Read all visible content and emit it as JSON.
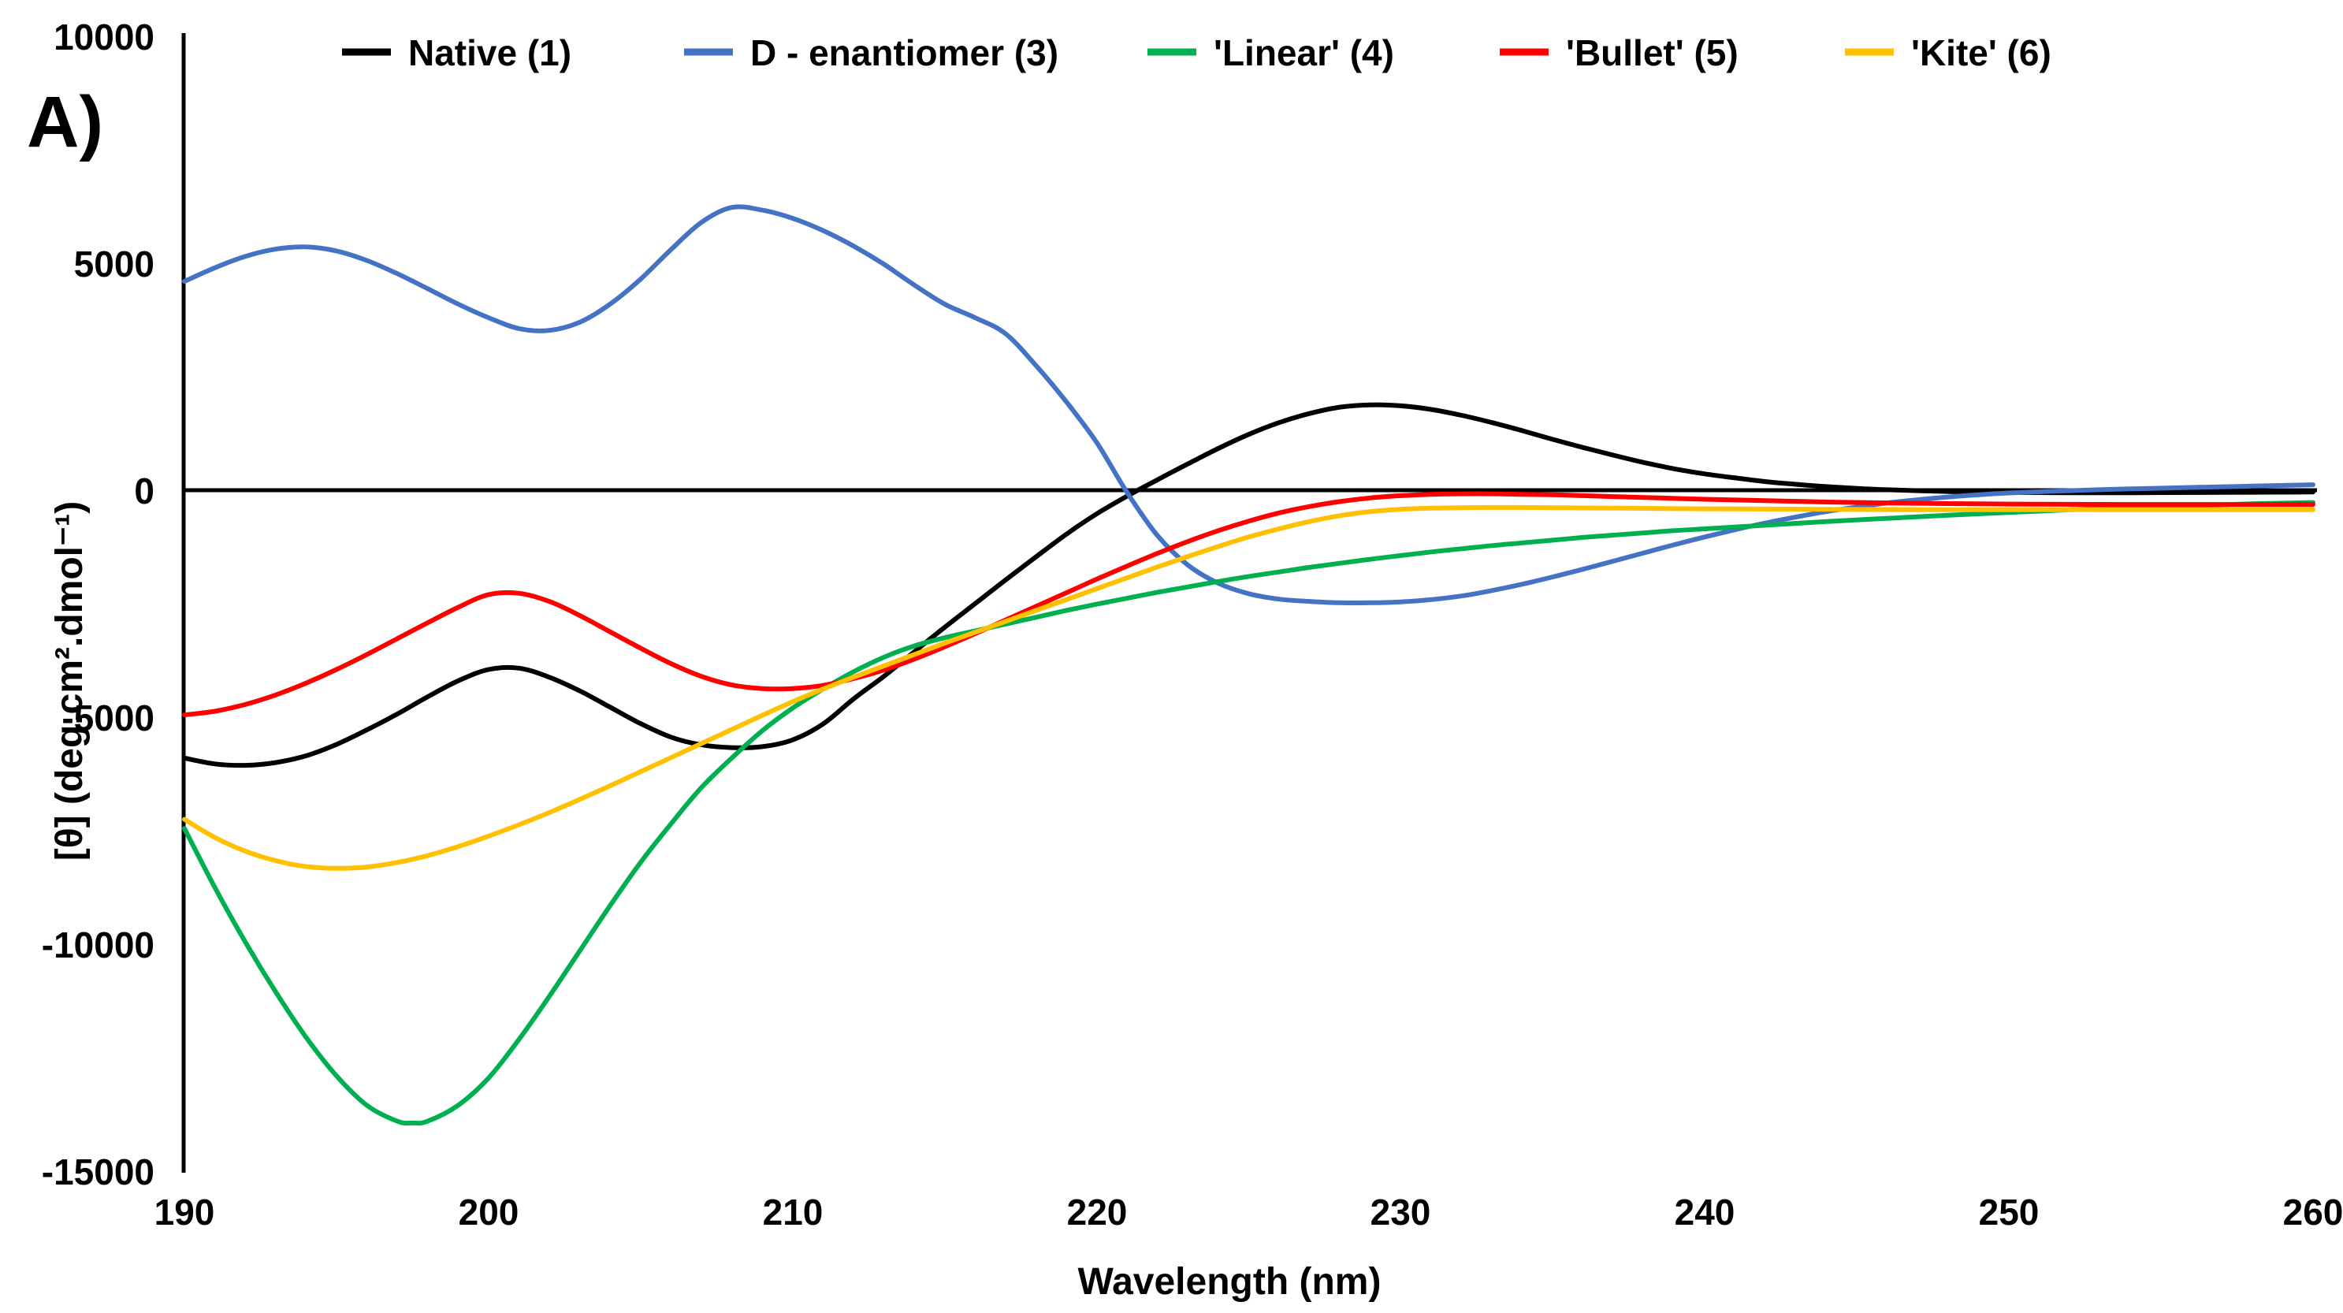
{
  "panel_label": "A)",
  "chart_data": {
    "type": "line",
    "title": "",
    "xlabel": "Wavelength (nm)",
    "ylabel": "[θ] (deg.cm².dmol⁻¹)",
    "xlim": [
      190,
      260
    ],
    "ylim": [
      -15000,
      10000
    ],
    "x_ticks": [
      190,
      200,
      210,
      220,
      230,
      240,
      250,
      260
    ],
    "y_ticks": [
      10000,
      5000,
      0,
      -5000,
      -10000,
      -15000
    ],
    "grid": false,
    "legend_position": "top",
    "axis_color": "#000000",
    "series": [
      {
        "name": "Native (1)",
        "color": "#000000",
        "points": [
          [
            190,
            -5900
          ],
          [
            191,
            -6030
          ],
          [
            192,
            -6060
          ],
          [
            193,
            -6000
          ],
          [
            194,
            -5850
          ],
          [
            195,
            -5600
          ],
          [
            196,
            -5280
          ],
          [
            197,
            -4930
          ],
          [
            198,
            -4550
          ],
          [
            199,
            -4200
          ],
          [
            200,
            -3950
          ],
          [
            201,
            -3920
          ],
          [
            202,
            -4120
          ],
          [
            203,
            -4420
          ],
          [
            204,
            -4780
          ],
          [
            205,
            -5140
          ],
          [
            206,
            -5440
          ],
          [
            207,
            -5610
          ],
          [
            208,
            -5670
          ],
          [
            209,
            -5650
          ],
          [
            210,
            -5500
          ],
          [
            211,
            -5150
          ],
          [
            212,
            -4600
          ],
          [
            213,
            -4100
          ],
          [
            214,
            -3560
          ],
          [
            215,
            -3020
          ],
          [
            216,
            -2500
          ],
          [
            217,
            -1980
          ],
          [
            218,
            -1470
          ],
          [
            219,
            -970
          ],
          [
            220,
            -520
          ],
          [
            221,
            -130
          ],
          [
            222,
            230
          ],
          [
            223,
            580
          ],
          [
            224,
            920
          ],
          [
            225,
            1230
          ],
          [
            226,
            1490
          ],
          [
            227,
            1690
          ],
          [
            228,
            1830
          ],
          [
            229,
            1880
          ],
          [
            230,
            1860
          ],
          [
            231,
            1780
          ],
          [
            232,
            1650
          ],
          [
            233,
            1490
          ],
          [
            234,
            1310
          ],
          [
            235,
            1120
          ],
          [
            236,
            940
          ],
          [
            237,
            770
          ],
          [
            238,
            610
          ],
          [
            239,
            470
          ],
          [
            240,
            360
          ],
          [
            241,
            270
          ],
          [
            242,
            190
          ],
          [
            243,
            130
          ],
          [
            244,
            80
          ],
          [
            245,
            40
          ],
          [
            246,
            10
          ],
          [
            247,
            -10
          ],
          [
            248,
            -30
          ],
          [
            249,
            -40
          ],
          [
            250,
            -50
          ],
          [
            252,
            -55
          ],
          [
            254,
            -55
          ],
          [
            256,
            -50
          ],
          [
            258,
            -45
          ],
          [
            260,
            -40
          ]
        ]
      },
      {
        "name": "D - enantiomer (3)",
        "color": "#4472C4",
        "points": [
          [
            190,
            4600
          ],
          [
            191,
            4900
          ],
          [
            192,
            5150
          ],
          [
            193,
            5310
          ],
          [
            194,
            5360
          ],
          [
            195,
            5270
          ],
          [
            196,
            5060
          ],
          [
            197,
            4770
          ],
          [
            198,
            4440
          ],
          [
            199,
            4100
          ],
          [
            200,
            3800
          ],
          [
            201,
            3560
          ],
          [
            202,
            3520
          ],
          [
            203,
            3700
          ],
          [
            204,
            4100
          ],
          [
            205,
            4650
          ],
          [
            206,
            5300
          ],
          [
            207,
            5900
          ],
          [
            208,
            6230
          ],
          [
            209,
            6170
          ],
          [
            210,
            5990
          ],
          [
            211,
            5720
          ],
          [
            212,
            5380
          ],
          [
            213,
            4980
          ],
          [
            214,
            4520
          ],
          [
            215,
            4100
          ],
          [
            216,
            3800
          ],
          [
            217,
            3450
          ],
          [
            218,
            2750
          ],
          [
            219,
            1950
          ],
          [
            220,
            1050
          ],
          [
            221,
            -50
          ],
          [
            222,
            -1000
          ],
          [
            223,
            -1650
          ],
          [
            224,
            -2050
          ],
          [
            225,
            -2280
          ],
          [
            226,
            -2400
          ],
          [
            227,
            -2450
          ],
          [
            228,
            -2480
          ],
          [
            229,
            -2480
          ],
          [
            230,
            -2460
          ],
          [
            231,
            -2410
          ],
          [
            232,
            -2330
          ],
          [
            233,
            -2210
          ],
          [
            234,
            -2070
          ],
          [
            235,
            -1910
          ],
          [
            236,
            -1740
          ],
          [
            237,
            -1560
          ],
          [
            238,
            -1380
          ],
          [
            239,
            -1200
          ],
          [
            240,
            -1030
          ],
          [
            241,
            -870
          ],
          [
            242,
            -720
          ],
          [
            243,
            -590
          ],
          [
            244,
            -470
          ],
          [
            245,
            -370
          ],
          [
            246,
            -280
          ],
          [
            247,
            -210
          ],
          [
            248,
            -150
          ],
          [
            249,
            -100
          ],
          [
            250,
            -60
          ],
          [
            252,
            -10
          ],
          [
            254,
            30
          ],
          [
            256,
            60
          ],
          [
            258,
            90
          ],
          [
            260,
            120
          ]
        ]
      },
      {
        "name": "'Linear' (4)",
        "color": "#00B050",
        "points": [
          [
            190,
            -7450
          ],
          [
            191,
            -8750
          ],
          [
            192,
            -9950
          ],
          [
            193,
            -11050
          ],
          [
            194,
            -12050
          ],
          [
            195,
            -12900
          ],
          [
            196,
            -13550
          ],
          [
            197,
            -13900
          ],
          [
            197.5,
            -13940
          ],
          [
            198,
            -13900
          ],
          [
            199,
            -13550
          ],
          [
            200,
            -12950
          ],
          [
            201,
            -12100
          ],
          [
            202,
            -11150
          ],
          [
            203,
            -10150
          ],
          [
            204,
            -9150
          ],
          [
            205,
            -8200
          ],
          [
            206,
            -7350
          ],
          [
            207,
            -6550
          ],
          [
            208,
            -5900
          ],
          [
            209,
            -5300
          ],
          [
            210,
            -4800
          ],
          [
            211,
            -4380
          ],
          [
            212,
            -4000
          ],
          [
            213,
            -3680
          ],
          [
            214,
            -3430
          ],
          [
            215,
            -3250
          ],
          [
            216,
            -3100
          ],
          [
            217,
            -2950
          ],
          [
            218,
            -2800
          ],
          [
            219,
            -2650
          ],
          [
            220,
            -2510
          ],
          [
            221,
            -2380
          ],
          [
            222,
            -2250
          ],
          [
            223,
            -2130
          ],
          [
            224,
            -2010
          ],
          [
            225,
            -1900
          ],
          [
            226,
            -1800
          ],
          [
            227,
            -1700
          ],
          [
            228,
            -1610
          ],
          [
            229,
            -1520
          ],
          [
            230,
            -1440
          ],
          [
            231,
            -1360
          ],
          [
            232,
            -1290
          ],
          [
            233,
            -1220
          ],
          [
            234,
            -1160
          ],
          [
            235,
            -1100
          ],
          [
            236,
            -1040
          ],
          [
            237,
            -990
          ],
          [
            238,
            -940
          ],
          [
            239,
            -890
          ],
          [
            240,
            -850
          ],
          [
            242,
            -770
          ],
          [
            244,
            -690
          ],
          [
            246,
            -620
          ],
          [
            248,
            -550
          ],
          [
            250,
            -490
          ],
          [
            252,
            -430
          ],
          [
            254,
            -380
          ],
          [
            256,
            -340
          ],
          [
            258,
            -300
          ],
          [
            260,
            -270
          ]
        ]
      },
      {
        "name": "'Bullet' (5)",
        "color": "#FF0000",
        "points": [
          [
            190,
            -4950
          ],
          [
            191,
            -4870
          ],
          [
            192,
            -4720
          ],
          [
            193,
            -4510
          ],
          [
            194,
            -4250
          ],
          [
            195,
            -3950
          ],
          [
            196,
            -3620
          ],
          [
            197,
            -3270
          ],
          [
            198,
            -2920
          ],
          [
            199,
            -2580
          ],
          [
            200,
            -2300
          ],
          [
            201,
            -2270
          ],
          [
            202,
            -2450
          ],
          [
            203,
            -2760
          ],
          [
            204,
            -3120
          ],
          [
            205,
            -3480
          ],
          [
            206,
            -3820
          ],
          [
            207,
            -4100
          ],
          [
            208,
            -4290
          ],
          [
            209,
            -4370
          ],
          [
            210,
            -4370
          ],
          [
            211,
            -4300
          ],
          [
            212,
            -4150
          ],
          [
            213,
            -3960
          ],
          [
            214,
            -3720
          ],
          [
            215,
            -3450
          ],
          [
            216,
            -3160
          ],
          [
            217,
            -2860
          ],
          [
            218,
            -2560
          ],
          [
            219,
            -2260
          ],
          [
            220,
            -1960
          ],
          [
            221,
            -1670
          ],
          [
            222,
            -1390
          ],
          [
            223,
            -1130
          ],
          [
            224,
            -890
          ],
          [
            225,
            -680
          ],
          [
            226,
            -500
          ],
          [
            227,
            -360
          ],
          [
            228,
            -250
          ],
          [
            229,
            -170
          ],
          [
            230,
            -120
          ],
          [
            231,
            -90
          ],
          [
            232,
            -80
          ],
          [
            233,
            -80
          ],
          [
            234,
            -90
          ],
          [
            235,
            -100
          ],
          [
            236,
            -120
          ],
          [
            237,
            -140
          ],
          [
            238,
            -160
          ],
          [
            239,
            -180
          ],
          [
            240,
            -200
          ],
          [
            242,
            -230
          ],
          [
            244,
            -260
          ],
          [
            246,
            -280
          ],
          [
            248,
            -295
          ],
          [
            250,
            -305
          ],
          [
            252,
            -310
          ],
          [
            254,
            -315
          ],
          [
            256,
            -315
          ],
          [
            258,
            -315
          ],
          [
            260,
            -315
          ]
        ]
      },
      {
        "name": "'Kite' (6)",
        "color": "#FFC000",
        "points": [
          [
            190,
            -7250
          ],
          [
            191,
            -7650
          ],
          [
            192,
            -7950
          ],
          [
            193,
            -8160
          ],
          [
            194,
            -8290
          ],
          [
            195,
            -8330
          ],
          [
            196,
            -8300
          ],
          [
            197,
            -8200
          ],
          [
            198,
            -8050
          ],
          [
            199,
            -7850
          ],
          [
            200,
            -7620
          ],
          [
            201,
            -7370
          ],
          [
            202,
            -7100
          ],
          [
            203,
            -6810
          ],
          [
            204,
            -6510
          ],
          [
            205,
            -6200
          ],
          [
            206,
            -5890
          ],
          [
            207,
            -5580
          ],
          [
            208,
            -5270
          ],
          [
            209,
            -4960
          ],
          [
            210,
            -4660
          ],
          [
            211,
            -4380
          ],
          [
            212,
            -4120
          ],
          [
            213,
            -3870
          ],
          [
            214,
            -3620
          ],
          [
            215,
            -3370
          ],
          [
            216,
            -3130
          ],
          [
            217,
            -2890
          ],
          [
            218,
            -2650
          ],
          [
            219,
            -2410
          ],
          [
            220,
            -2170
          ],
          [
            221,
            -1930
          ],
          [
            222,
            -1690
          ],
          [
            223,
            -1460
          ],
          [
            224,
            -1240
          ],
          [
            225,
            -1030
          ],
          [
            226,
            -850
          ],
          [
            227,
            -690
          ],
          [
            228,
            -560
          ],
          [
            229,
            -470
          ],
          [
            230,
            -420
          ],
          [
            231,
            -395
          ],
          [
            232,
            -385
          ],
          [
            233,
            -380
          ],
          [
            234,
            -380
          ],
          [
            235,
            -385
          ],
          [
            236,
            -390
          ],
          [
            238,
            -400
          ],
          [
            240,
            -410
          ],
          [
            242,
            -415
          ],
          [
            244,
            -420
          ],
          [
            246,
            -425
          ],
          [
            248,
            -430
          ],
          [
            250,
            -430
          ],
          [
            252,
            -430
          ],
          [
            254,
            -430
          ],
          [
            256,
            -430
          ],
          [
            258,
            -430
          ],
          [
            260,
            -430
          ]
        ]
      }
    ]
  }
}
